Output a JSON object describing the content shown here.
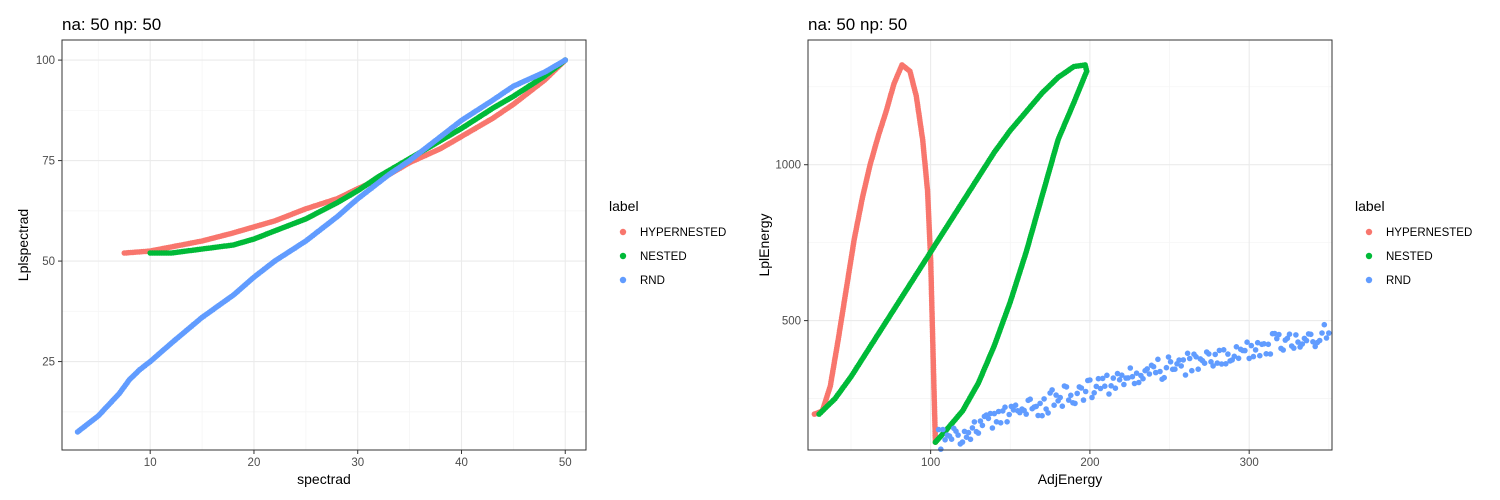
{
  "figure_title": "",
  "colors": {
    "HYPERNESTED": "#F8766D",
    "NESTED": "#00BA38",
    "RND": "#619CFF",
    "grid_major": "#ebebeb",
    "grid_minor": "#f5f5f5",
    "panel_border": "#333333",
    "tick_text": "#4d4d4d"
  },
  "legend": {
    "title": "label",
    "entries": [
      "HYPERNESTED",
      "NESTED",
      "RND"
    ]
  },
  "chart_data": [
    {
      "type": "scatter",
      "title": "na: 50 np: 50",
      "xlabel": "spectrad",
      "ylabel": "Lplspectrad",
      "xlim": [
        1.5,
        52
      ],
      "ylim": [
        3,
        105
      ],
      "xticks": [
        10,
        20,
        30,
        40,
        50
      ],
      "yticks": [
        25,
        50,
        75,
        100
      ],
      "grid": true,
      "legend_position": "right",
      "series": [
        {
          "name": "HYPERNESTED",
          "points": [
            [
              7.5,
              52
            ],
            [
              10,
              52.5
            ],
            [
              12,
              53.5
            ],
            [
              15,
              55
            ],
            [
              18,
              57
            ],
            [
              20,
              58.5
            ],
            [
              22,
              60
            ],
            [
              25,
              63
            ],
            [
              28,
              65.5
            ],
            [
              30,
              68
            ],
            [
              33,
              71.5
            ],
            [
              35,
              74.5
            ],
            [
              38,
              78
            ],
            [
              40,
              81
            ],
            [
              43,
              85.5
            ],
            [
              45,
              89
            ],
            [
              48,
              95
            ],
            [
              50,
              100
            ]
          ]
        },
        {
          "name": "NESTED",
          "points": [
            [
              10,
              52
            ],
            [
              12,
              52
            ],
            [
              15,
              53
            ],
            [
              18,
              54
            ],
            [
              20,
              55.5
            ],
            [
              22,
              57.5
            ],
            [
              25,
              60.5
            ],
            [
              28,
              64.5
            ],
            [
              30,
              67.5
            ],
            [
              32,
              71
            ],
            [
              35,
              75.5
            ],
            [
              38,
              80
            ],
            [
              40,
              83
            ],
            [
              43,
              88
            ],
            [
              45,
              91
            ],
            [
              48,
              96
            ],
            [
              50,
              100
            ]
          ]
        },
        {
          "name": "RND",
          "points": [
            [
              3,
              7.5
            ],
            [
              5,
              11.5
            ],
            [
              7,
              17
            ],
            [
              8,
              20.5
            ],
            [
              9,
              23
            ],
            [
              10,
              25
            ],
            [
              12,
              29.5
            ],
            [
              15,
              36
            ],
            [
              18,
              41.5
            ],
            [
              20,
              46
            ],
            [
              22,
              50
            ],
            [
              25,
              55
            ],
            [
              28,
              61
            ],
            [
              30,
              65.5
            ],
            [
              33,
              71.5
            ],
            [
              35,
              75
            ],
            [
              38,
              81
            ],
            [
              40,
              85
            ],
            [
              43,
              90
            ],
            [
              45,
              93.5
            ],
            [
              48,
              97
            ],
            [
              50,
              100
            ]
          ]
        }
      ]
    },
    {
      "type": "scatter",
      "title": "na: 50 np: 50",
      "xlabel": "AdjEnergy",
      "ylabel": "LplEnergy",
      "xlim": [
        23,
        352
      ],
      "ylim": [
        85,
        1400
      ],
      "xticks": [
        100,
        200,
        300
      ],
      "yticks": [
        500,
        1000
      ],
      "grid": true,
      "legend_position": "right",
      "series": [
        {
          "name": "HYPERNESTED",
          "points": [
            [
              27,
              200
            ],
            [
              32,
              210
            ],
            [
              37,
              290
            ],
            [
              42,
              440
            ],
            [
              47,
              600
            ],
            [
              52,
              760
            ],
            [
              57,
              890
            ],
            [
              62,
              1000
            ],
            [
              67,
              1090
            ],
            [
              72,
              1170
            ],
            [
              77,
              1260
            ],
            [
              82,
              1320
            ],
            [
              87,
              1300
            ],
            [
              91,
              1220
            ],
            [
              95,
              1080
            ],
            [
              98,
              920
            ],
            [
              100,
              700
            ],
            [
              101,
              500
            ],
            [
              102,
              300
            ],
            [
              103,
              110
            ]
          ]
        },
        {
          "name": "NESTED",
          "points": [
            [
              30,
              200
            ],
            [
              40,
              250
            ],
            [
              50,
              320
            ],
            [
              60,
              400
            ],
            [
              70,
              480
            ],
            [
              80,
              560
            ],
            [
              90,
              640
            ],
            [
              100,
              720
            ],
            [
              110,
              800
            ],
            [
              120,
              880
            ],
            [
              130,
              960
            ],
            [
              140,
              1040
            ],
            [
              150,
              1110
            ],
            [
              160,
              1170
            ],
            [
              170,
              1230
            ],
            [
              180,
              1280
            ],
            [
              190,
              1315
            ],
            [
              197,
              1320
            ],
            [
              198,
              1300
            ],
            [
              190,
              1200
            ],
            [
              180,
              1080
            ],
            [
              170,
              900
            ],
            [
              160,
              720
            ],
            [
              150,
              560
            ],
            [
              140,
              420
            ],
            [
              130,
              300
            ],
            [
              120,
              210
            ],
            [
              110,
              150
            ],
            [
              103,
              110
            ]
          ]
        },
        {
          "name": "RND",
          "points": [
            [
              105,
              115
            ],
            [
              120,
              140
            ],
            [
              140,
              180
            ],
            [
              160,
              210
            ],
            [
              180,
              250
            ],
            [
              200,
              280
            ],
            [
              220,
              310
            ],
            [
              240,
              340
            ],
            [
              260,
              360
            ],
            [
              280,
              390
            ],
            [
              300,
              410
            ],
            [
              320,
              430
            ],
            [
              340,
              450
            ],
            [
              350,
              460
            ]
          ]
        }
      ]
    }
  ]
}
